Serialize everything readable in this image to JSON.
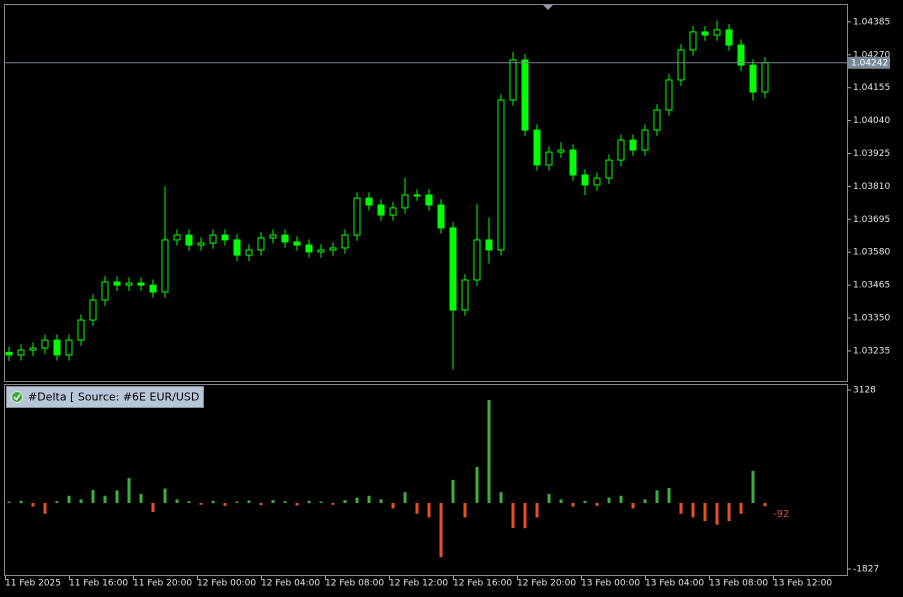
{
  "chart_data": [
    {
      "type": "candlestick",
      "up_color": "#00ff00",
      "down_color": "#00ff00",
      "x_labels": [
        "11 Feb 2025",
        "11 Feb 16:00",
        "11 Feb 20:00",
        "12 Feb 00:00",
        "12 Feb 04:00",
        "12 Feb 08:00",
        "12 Feb 12:00",
        "12 Feb 16:00",
        "12 Feb 20:00",
        "13 Feb 00:00",
        "13 Feb 04:00",
        "13 Feb 08:00",
        "13 Feb 12:00"
      ],
      "open": [
        1.0323,
        1.03221,
        1.03238,
        1.03245,
        1.03273,
        1.03221,
        1.03273,
        1.03343,
        1.03413,
        1.03476,
        1.03465,
        1.03472,
        1.03465,
        1.03441,
        1.03623,
        1.0364,
        1.03605,
        1.03612,
        1.0364,
        1.03623,
        1.0357,
        1.03588,
        1.0363,
        1.0364,
        1.03616,
        1.03605,
        1.03581,
        1.03588,
        1.03595,
        1.0364,
        1.03769,
        1.03745,
        1.0371,
        1.03735,
        1.0378,
        1.0378,
        1.03745,
        1.03665,
        1.03378,
        1.03483,
        1.03623,
        1.03588,
        1.04112,
        1.04252,
        1.04007,
        1.03885,
        1.0393,
        1.03937,
        1.0385,
        1.03815,
        1.03839,
        1.03902,
        1.03972,
        1.03937,
        1.04007,
        1.04077,
        1.04182,
        1.04287,
        1.0435,
        1.04339,
        1.04357,
        1.04304,
        1.04234,
        1.0414
      ],
      "high": [
        1.0325,
        1.03258,
        1.03265,
        1.03293,
        1.03293,
        1.03293,
        1.03363,
        1.03433,
        1.03496,
        1.03496,
        1.03492,
        1.03492,
        1.03485,
        1.0381,
        1.0366,
        1.0366,
        1.03632,
        1.0366,
        1.0366,
        1.03643,
        1.03608,
        1.0365,
        1.0366,
        1.0366,
        1.03636,
        1.03625,
        1.03608,
        1.03615,
        1.0366,
        1.03789,
        1.03789,
        1.03765,
        1.03755,
        1.0384,
        1.038,
        1.038,
        1.03765,
        1.03685,
        1.03503,
        1.0375,
        1.037,
        1.04132,
        1.0428,
        1.04272,
        1.04027,
        1.0395,
        1.03965,
        1.03957,
        1.0387,
        1.03859,
        1.03922,
        1.03992,
        1.03992,
        1.04027,
        1.04097,
        1.04202,
        1.04307,
        1.0437,
        1.0437,
        1.0439,
        1.04377,
        1.04324,
        1.04254,
        1.04262
      ],
      "low": [
        1.032,
        1.03201,
        1.03218,
        1.03225,
        1.03201,
        1.03201,
        1.03253,
        1.03323,
        1.03393,
        1.03445,
        1.03445,
        1.03445,
        1.03421,
        1.03421,
        1.03603,
        1.03585,
        1.03585,
        1.03592,
        1.03603,
        1.0355,
        1.0355,
        1.03568,
        1.0361,
        1.03596,
        1.03585,
        1.03561,
        1.03561,
        1.03568,
        1.03575,
        1.0362,
        1.03725,
        1.0369,
        1.0369,
        1.03715,
        1.0376,
        1.03725,
        1.03645,
        1.0317,
        1.03358,
        1.03463,
        1.0354,
        1.03568,
        1.04092,
        1.03987,
        1.03865,
        1.03865,
        1.0391,
        1.0383,
        1.0378,
        1.03795,
        1.03819,
        1.03882,
        1.03917,
        1.03917,
        1.03987,
        1.04057,
        1.04162,
        1.04267,
        1.04319,
        1.04319,
        1.04284,
        1.04214,
        1.0411,
        1.0412
      ],
      "close": [
        1.03221,
        1.03238,
        1.03245,
        1.03273,
        1.03221,
        1.03273,
        1.03343,
        1.03413,
        1.03476,
        1.03465,
        1.03472,
        1.03465,
        1.03441,
        1.03623,
        1.0364,
        1.03605,
        1.03612,
        1.0364,
        1.03623,
        1.0357,
        1.03588,
        1.0363,
        1.0364,
        1.03616,
        1.03605,
        1.03581,
        1.03588,
        1.03595,
        1.0364,
        1.03769,
        1.03745,
        1.0371,
        1.03735,
        1.0378,
        1.0378,
        1.03745,
        1.03665,
        1.03378,
        1.03483,
        1.03623,
        1.03588,
        1.04112,
        1.04252,
        1.04007,
        1.03885,
        1.0393,
        1.03937,
        1.0385,
        1.03815,
        1.03839,
        1.03902,
        1.03972,
        1.03937,
        1.04007,
        1.04077,
        1.04182,
        1.04287,
        1.0435,
        1.04339,
        1.04357,
        1.04304,
        1.04234,
        1.0414,
        1.04242
      ],
      "ylim": [
        1.0313,
        1.04444
      ],
      "yticks": [
        1.04385,
        {
          "value": 1.0427,
          "label": "1.04270"
        },
        1.04155,
        {
          "value": 1.0404,
          "label": "1.04040"
        },
        1.03925,
        {
          "value": 1.0381,
          "label": "1.03810"
        },
        1.03695,
        {
          "value": 1.0358,
          "label": "1.03580"
        },
        1.03465,
        {
          "value": 1.0335,
          "label": "1.03350"
        },
        1.03235
      ],
      "current_price": 1.04242
    },
    {
      "type": "bar",
      "title": "#Delta [ Source: #6E EUR/USD ]",
      "positive_color": "#3fae3f",
      "negative_color": "#e8521f",
      "values": [
        40,
        60,
        -100,
        -300,
        50,
        200,
        100,
        360,
        200,
        350,
        690,
        250,
        -250,
        400,
        100,
        50,
        -50,
        60,
        -80,
        40,
        70,
        -60,
        80,
        50,
        -70,
        60,
        40,
        -50,
        80,
        150,
        200,
        100,
        -150,
        300,
        -300,
        -400,
        -1495,
        640,
        -400,
        1000,
        2850,
        300,
        -690,
        -700,
        -400,
        250,
        100,
        -100,
        60,
        -80,
        150,
        200,
        -150,
        100,
        350,
        415,
        -300,
        -400,
        -500,
        -600,
        -500,
        -300,
        890,
        -92
      ],
      "ylim": [
        -1993,
        3294
      ],
      "yticks": [
        3128,
        -1827
      ]
    }
  ]
}
